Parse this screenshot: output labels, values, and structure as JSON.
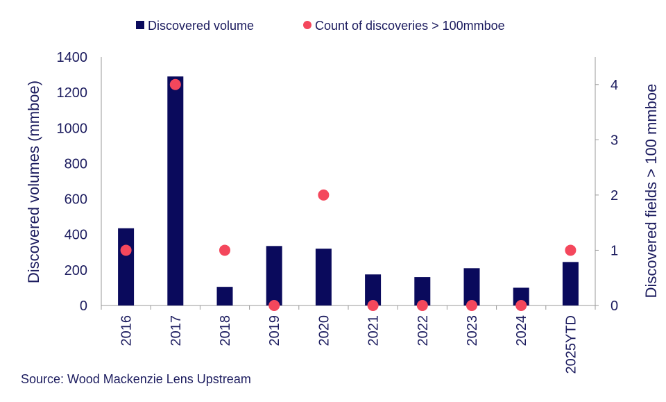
{
  "chart_data": {
    "type": "bar",
    "categories": [
      "2016",
      "2017",
      "2018",
      "2019",
      "2020",
      "2021",
      "2022",
      "2023",
      "2024",
      "2025YTD"
    ],
    "series": [
      {
        "name": "Discovered volume",
        "type": "bar",
        "axis": "left",
        "color": "#0a0a5c",
        "values": [
          435,
          1290,
          105,
          335,
          320,
          175,
          160,
          210,
          100,
          245
        ]
      },
      {
        "name": "Count of discoveries > 100mmboe",
        "type": "scatter",
        "axis": "right",
        "color": "#f4475c",
        "values": [
          1,
          4,
          1,
          0,
          2,
          0,
          0,
          0,
          0,
          1
        ]
      }
    ],
    "ylabel": "Discovered volumes (mmboe)",
    "y2label": "Discovered fields > 100 mmboe",
    "ylim": [
      0,
      1400
    ],
    "y2lim": [
      0,
      4.5
    ],
    "yticks": [
      "0",
      "200",
      "400",
      "600",
      "800",
      "1000",
      "1200",
      "1400"
    ],
    "y2ticks": [
      "0",
      "1",
      "2",
      "3",
      "4"
    ],
    "legend": "top",
    "grid": false
  },
  "source": "Source: Wood Mackenzie Lens Upstream"
}
